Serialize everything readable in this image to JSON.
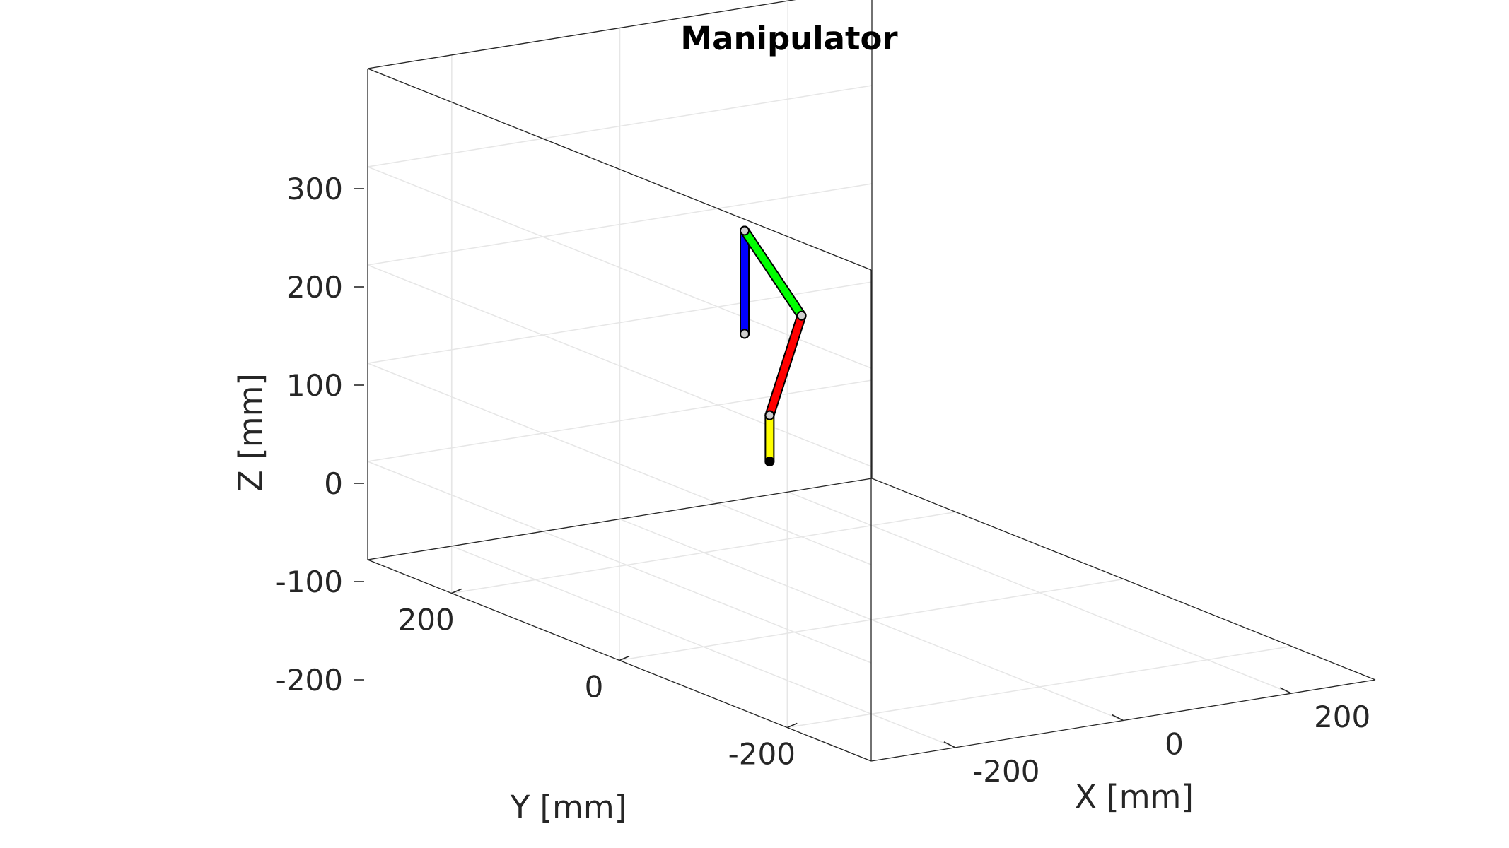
{
  "chart_data": {
    "type": "line3d",
    "title": "Manipulator",
    "xlabel": "X [mm]",
    "ylabel": "Y [mm]",
    "zlabel": "Z [mm]",
    "xlim": [
      -300,
      300
    ],
    "ylim": [
      -300,
      300
    ],
    "zlim": [
      -200,
      300
    ],
    "xticks": [
      -200,
      0,
      200
    ],
    "yticks": [
      -200,
      0,
      200
    ],
    "zticks": [
      -200,
      -100,
      0,
      100,
      200,
      300
    ],
    "xtick_labels": [
      "-200",
      "0",
      "200"
    ],
    "ytick_labels": [
      "-200",
      "0",
      "200"
    ],
    "ztick_labels": [
      "-200",
      "-100",
      "0",
      "100",
      "200",
      "300"
    ],
    "grid": true,
    "view": {
      "azimuth_deg": -37.5,
      "elevation_deg": 30
    },
    "series": [
      {
        "segment": "link-1",
        "color": "#0000ff",
        "points": [
          [
            0,
            0,
            140
          ],
          [
            0,
            0,
            245
          ]
        ]
      },
      {
        "segment": "link-2",
        "color": "#00ff00",
        "points": [
          [
            0,
            0,
            245
          ],
          [
            106,
            0,
            160
          ]
        ]
      },
      {
        "segment": "link-3",
        "color": "#ff0000",
        "points": [
          [
            106,
            0,
            160
          ],
          [
            72,
            -45,
            62
          ]
        ]
      },
      {
        "segment": "link-4",
        "color": "#ffff00",
        "points": [
          [
            72,
            -45,
            62
          ],
          [
            72,
            -45,
            15
          ]
        ]
      }
    ],
    "joints": [
      [
        0,
        0,
        140
      ],
      [
        0,
        0,
        245
      ],
      [
        106,
        0,
        160
      ],
      [
        72,
        -45,
        62
      ],
      [
        72,
        -45,
        15
      ]
    ]
  }
}
